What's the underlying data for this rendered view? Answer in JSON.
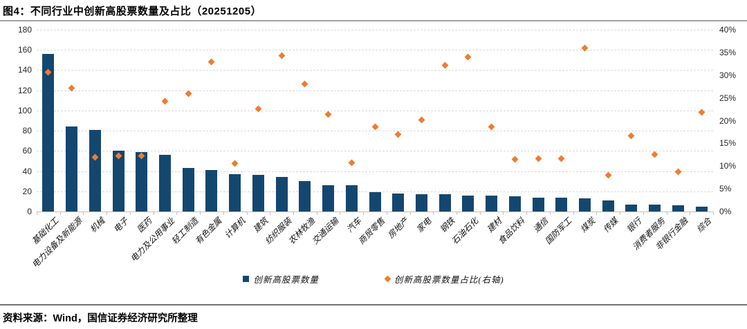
{
  "header": {
    "title": "图4：不同行业中创新高股票数量及占比（20251205）"
  },
  "footer": {
    "source": "资料来源：Wind，国信证券经济研究所整理"
  },
  "colors": {
    "bar": "#14476F",
    "diamond": "#ED7D31",
    "gridline": "#D9D9D9",
    "axis_line": "#BFBFBF",
    "tick_text": "#262626"
  },
  "chart_data": {
    "type": "combo-bar-scatter",
    "title": "不同行业中创新高股票数量及占比（20251205）",
    "categories": [
      "基础化工",
      "电力设备及新能源",
      "机械",
      "电子",
      "医药",
      "电力及公用事业",
      "轻工制造",
      "有色金属",
      "计算机",
      "建筑",
      "纺织服装",
      "农林牧渔",
      "交通运输",
      "汽车",
      "商贸零售",
      "房地产",
      "家电",
      "钢铁",
      "石油石化",
      "建材",
      "食品饮料",
      "通信",
      "国防军工",
      "煤炭",
      "传媒",
      "银行",
      "消费者服务",
      "非银行金融",
      "综合"
    ],
    "series": [
      {
        "name": "创新高股票数量",
        "type": "bar",
        "axis": "left",
        "values": [
          156,
          84,
          81,
          60,
          59,
          56,
          43,
          41,
          37,
          36,
          34,
          30,
          26,
          26,
          19,
          18,
          17,
          17,
          16,
          16,
          15,
          14,
          14,
          13,
          11,
          7,
          7,
          6,
          5
        ]
      },
      {
        "name": "创新高股票数量占比(右轴)",
        "type": "scatter",
        "axis": "right",
        "values_pct": [
          30.6,
          27.1,
          11.9,
          12.3,
          12.2,
          24.3,
          25.9,
          33.0,
          10.5,
          22.6,
          34.3,
          28.0,
          21.3,
          10.7,
          18.7,
          17.0,
          20.2,
          32.1,
          34.0,
          18.6,
          11.5,
          11.7,
          11.6,
          36.0,
          8.0,
          16.7,
          12.6,
          8.8,
          21.8
        ]
      }
    ],
    "left_axis": {
      "min": 0,
      "max": 180,
      "step": 20,
      "ticks": [
        "0",
        "20",
        "40",
        "60",
        "80",
        "100",
        "120",
        "140",
        "160",
        "180"
      ]
    },
    "right_axis": {
      "min": 0,
      "max": 40,
      "step": 5,
      "ticks": [
        "0%",
        "5%",
        "10%",
        "15%",
        "20%",
        "25%",
        "30%",
        "35%",
        "40%"
      ]
    },
    "grid": "dashed horizontal",
    "legend_position": "bottom-center"
  }
}
